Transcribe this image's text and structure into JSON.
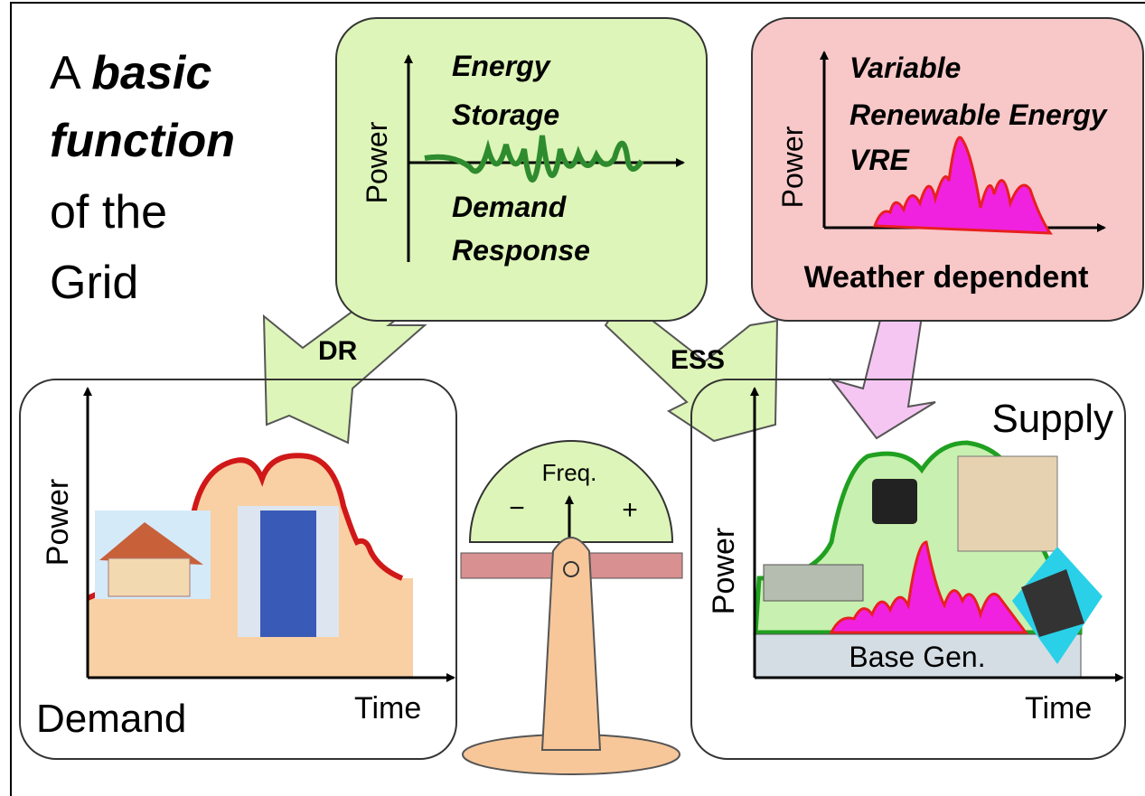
{
  "title": {
    "line1_plain": "A",
    "line1_emph": "basic",
    "line2": "function",
    "line3": "of the",
    "line4": "Grid"
  },
  "storage_box": {
    "axis_label": "Power",
    "energy": "Energy",
    "storage": "Storage",
    "demand": "Demand",
    "response": "Response"
  },
  "vre_box": {
    "axis_label": "Power",
    "variable": "Variable",
    "renewable": "Renewable Energy",
    "vre": "VRE",
    "caption": "Weather dependent"
  },
  "arrows": {
    "dr": "DR",
    "ess": "ESS"
  },
  "demand_panel": {
    "axis_label": "Power",
    "time_label": "Time",
    "caption": "Demand"
  },
  "scale": {
    "label": "Freq.",
    "minus": "−",
    "plus": "+"
  },
  "supply_panel": {
    "caption": "Supply",
    "axis_label": "Power",
    "base": "Base Gen.",
    "time_label": "Time"
  }
}
